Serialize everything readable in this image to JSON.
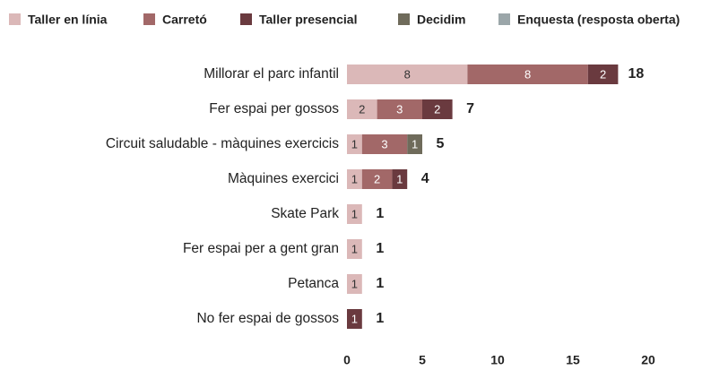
{
  "chart_data": {
    "type": "stacked_barh",
    "categories": [
      "Millorar el parc infantil",
      "Fer espai per gossos",
      "Circuit saludable - màquines exercicis",
      "Màquines exercici",
      "Skate Park",
      "Fer espai per a gent gran",
      "Petanca",
      "No fer espai de gossos"
    ],
    "series": [
      {
        "name": "Taller en línia",
        "color": "#dbb8b8",
        "values": [
          8,
          2,
          1,
          1,
          1,
          1,
          1,
          null
        ]
      },
      {
        "name": "Carretó",
        "color": "#a26868",
        "values": [
          8,
          3,
          3,
          2,
          null,
          null,
          null,
          null
        ]
      },
      {
        "name": "Taller presencial",
        "color": "#6a3a3f",
        "values": [
          2,
          2,
          null,
          1,
          null,
          null,
          null,
          1
        ]
      },
      {
        "name": "Decidim",
        "color": "#6f6b5b",
        "values": [
          null,
          null,
          1,
          null,
          null,
          null,
          null,
          null
        ]
      },
      {
        "name": "Enquesta (resposta oberta)",
        "color": "#9ba6a9",
        "values": [
          null,
          null,
          null,
          null,
          null,
          null,
          null,
          null
        ]
      }
    ],
    "totals": [
      18,
      7,
      5,
      4,
      1,
      1,
      1,
      1
    ],
    "xlim": [
      0,
      20
    ],
    "xticks": [
      0,
      5,
      10,
      15,
      20
    ],
    "grid": false,
    "legend": "top"
  }
}
